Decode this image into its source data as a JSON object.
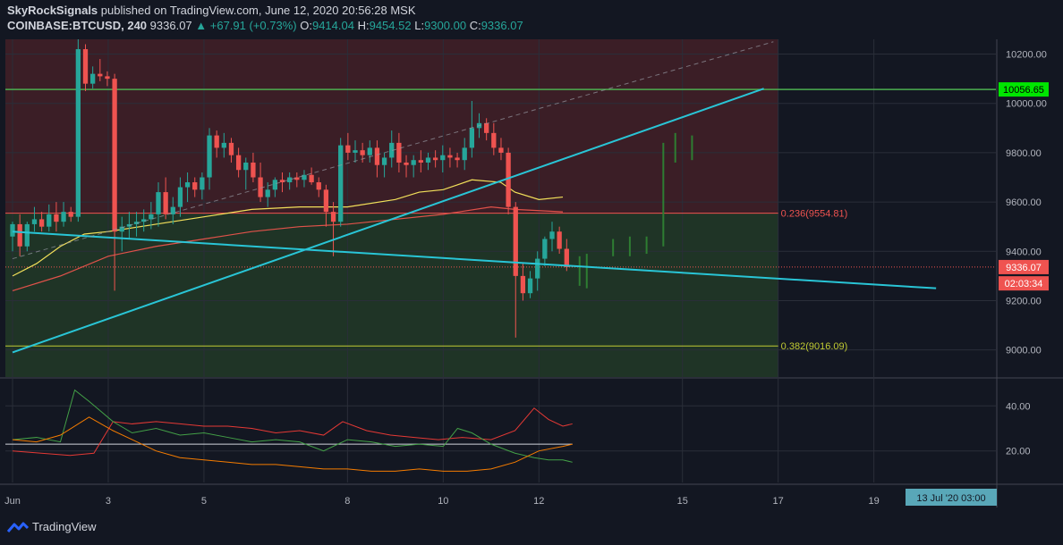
{
  "header": {
    "author": "SkyRockSignals",
    "published": "published on TradingView.com, June 12, 2020 20:56:28 MSK",
    "symbol": "COINBASE:BTCUSD, 240",
    "last": "9336.07",
    "change": "▲ +67.91 (+0.73%)",
    "o_label": "O:",
    "o_val": "9414.04",
    "h_label": "H:",
    "h_val": "9454.52",
    "l_label": "L:",
    "l_val": "9300.00",
    "c_label": "C:",
    "c_val": "9336.07"
  },
  "footer": {
    "brand": "TradingView"
  },
  "colors": {
    "up": "#26a69a",
    "down": "#ef5350",
    "ma_yellow": "#f2e05a",
    "ma_red": "#e0524a",
    "trend": "#29c5d6",
    "level_green": "#4caf50",
    "fib_red_zone": "#3b1e26",
    "fib_green_zone": "#1f3426"
  },
  "chart_data": {
    "type": "candlestick",
    "price_axis": {
      "ticks": [
        "10200.00",
        "10000.00",
        "9800.00",
        "9600.00",
        "9400.00",
        "9200.00",
        "9000.00"
      ],
      "tick_values": [
        10200,
        10000,
        9800,
        9600,
        9400,
        9200,
        9000
      ],
      "ylim": [
        8890,
        10260
      ]
    },
    "time_axis": {
      "ticks": [
        "Jun",
        "3",
        "5",
        "8",
        "10",
        "12",
        "15",
        "17",
        "19"
      ],
      "tick_days": [
        1,
        3,
        5,
        8,
        10,
        12,
        15,
        17,
        19
      ],
      "crosshair_label": "13 Jul '20   03:00"
    },
    "price_labels": [
      {
        "text": "10056.65",
        "value": 10056.65,
        "style": "green"
      },
      {
        "text": "9336.07",
        "value": 9336.07,
        "style": "red"
      },
      {
        "text": "02:03:34",
        "value": 9270,
        "style": "red"
      }
    ],
    "fib_levels": [
      {
        "label": "0.236(9554.81)",
        "value": 9554.81
      },
      {
        "label": "0.382(9016.09)",
        "value": 9016.09
      }
    ],
    "horizontal_level": 10056.65,
    "current_price": 9336.07,
    "candles": [
      [
        9460,
        9520,
        9400,
        9510
      ],
      [
        9510,
        9550,
        9380,
        9420
      ],
      [
        9420,
        9520,
        9400,
        9510
      ],
      [
        9510,
        9580,
        9480,
        9530
      ],
      [
        9530,
        9560,
        9480,
        9500
      ],
      [
        9500,
        9590,
        9480,
        9550
      ],
      [
        9550,
        9600,
        9480,
        9520
      ],
      [
        9520,
        9600,
        9500,
        9560
      ],
      [
        9560,
        9580,
        9520,
        9540
      ],
      [
        9540,
        10260,
        9520,
        10220
      ],
      [
        10220,
        10240,
        10050,
        10080
      ],
      [
        10080,
        10150,
        10060,
        10120
      ],
      [
        10120,
        10180,
        10090,
        10110
      ],
      [
        10110,
        10130,
        10070,
        10100
      ],
      [
        10100,
        10120,
        9240,
        9480
      ],
      [
        9480,
        9540,
        9400,
        9500
      ],
      [
        9500,
        9560,
        9450,
        9510
      ],
      [
        9510,
        9560,
        9460,
        9520
      ],
      [
        9520,
        9570,
        9480,
        9530
      ],
      [
        9530,
        9600,
        9490,
        9550
      ],
      [
        9550,
        9680,
        9500,
        9640
      ],
      [
        9640,
        9700,
        9530,
        9550
      ],
      [
        9550,
        9620,
        9510,
        9580
      ],
      [
        9580,
        9700,
        9540,
        9660
      ],
      [
        9660,
        9720,
        9600,
        9680
      ],
      [
        9680,
        9700,
        9620,
        9650
      ],
      [
        9650,
        9720,
        9610,
        9700
      ],
      [
        9700,
        9900,
        9650,
        9870
      ],
      [
        9870,
        9890,
        9780,
        9820
      ],
      [
        9820,
        9880,
        9780,
        9840
      ],
      [
        9840,
        9860,
        9760,
        9790
      ],
      [
        9790,
        9820,
        9700,
        9730
      ],
      [
        9730,
        9780,
        9650,
        9760
      ],
      [
        9760,
        9800,
        9680,
        9700
      ],
      [
        9700,
        9760,
        9600,
        9620
      ],
      [
        9620,
        9680,
        9580,
        9650
      ],
      [
        9650,
        9700,
        9620,
        9690
      ],
      [
        9690,
        9720,
        9640,
        9680
      ],
      [
        9680,
        9720,
        9650,
        9700
      ],
      [
        9700,
        9720,
        9660,
        9690
      ],
      [
        9690,
        9730,
        9660,
        9710
      ],
      [
        9710,
        9740,
        9670,
        9680
      ],
      [
        9680,
        9700,
        9620,
        9650
      ],
      [
        9650,
        9670,
        9500,
        9560
      ],
      [
        9560,
        9600,
        9380,
        9520
      ],
      [
        9520,
        9860,
        9500,
        9830
      ],
      [
        9830,
        9880,
        9770,
        9800
      ],
      [
        9800,
        9850,
        9760,
        9810
      ],
      [
        9810,
        9840,
        9760,
        9790
      ],
      [
        9790,
        9850,
        9760,
        9820
      ],
      [
        9820,
        9850,
        9700,
        9750
      ],
      [
        9750,
        9800,
        9700,
        9780
      ],
      [
        9780,
        9890,
        9740,
        9840
      ],
      [
        9840,
        9880,
        9720,
        9760
      ],
      [
        9760,
        9790,
        9700,
        9750
      ],
      [
        9750,
        9790,
        9700,
        9770
      ],
      [
        9770,
        9810,
        9720,
        9760
      ],
      [
        9760,
        9800,
        9730,
        9780
      ],
      [
        9780,
        9810,
        9740,
        9770
      ],
      [
        9770,
        9830,
        9720,
        9790
      ],
      [
        9790,
        9820,
        9740,
        9780
      ],
      [
        9780,
        9800,
        9740,
        9770
      ],
      [
        9770,
        9860,
        9730,
        9820
      ],
      [
        9820,
        10010,
        9780,
        9900
      ],
      [
        9900,
        9960,
        9860,
        9920
      ],
      [
        9920,
        9940,
        9850,
        9880
      ],
      [
        9880,
        9920,
        9790,
        9820
      ],
      [
        9820,
        9860,
        9770,
        9800
      ],
      [
        9800,
        9820,
        9550,
        9580
      ],
      [
        9580,
        9600,
        9050,
        9300
      ],
      [
        9300,
        9350,
        9200,
        9230
      ],
      [
        9230,
        9320,
        9210,
        9290
      ],
      [
        9290,
        9400,
        9240,
        9370
      ],
      [
        9370,
        9460,
        9340,
        9450
      ],
      [
        9450,
        9520,
        9400,
        9480
      ],
      [
        9480,
        9500,
        9390,
        9410
      ],
      [
        9410,
        9450,
        9320,
        9336
      ]
    ],
    "future_bars": [
      {
        "day": 12.85,
        "low": 9260,
        "high": 9380
      },
      {
        "day": 13.0,
        "low": 9250,
        "high": 9390
      },
      {
        "day": 13.55,
        "low": 9380,
        "high": 9450
      },
      {
        "day": 13.9,
        "low": 9380,
        "high": 9460
      },
      {
        "day": 14.25,
        "low": 9390,
        "high": 9460
      },
      {
        "day": 14.6,
        "low": 9420,
        "high": 9840
      },
      {
        "day": 14.85,
        "low": 9760,
        "high": 9880
      },
      {
        "day": 15.2,
        "low": 9770,
        "high": 9870
      }
    ],
    "ma_yellow": [
      [
        1.0,
        9300
      ],
      [
        1.5,
        9350
      ],
      [
        2.0,
        9420
      ],
      [
        2.5,
        9470
      ],
      [
        3.0,
        9480
      ],
      [
        4.0,
        9510
      ],
      [
        5.0,
        9540
      ],
      [
        6.0,
        9570
      ],
      [
        7.0,
        9580
      ],
      [
        8.0,
        9580
      ],
      [
        9.0,
        9610
      ],
      [
        9.5,
        9640
      ],
      [
        10.0,
        9650
      ],
      [
        10.6,
        9690
      ],
      [
        11.2,
        9680
      ],
      [
        11.5,
        9640
      ],
      [
        12.0,
        9610
      ],
      [
        12.5,
        9620
      ]
    ],
    "ma_red": [
      [
        1.0,
        9240
      ],
      [
        2.0,
        9300
      ],
      [
        3.0,
        9380
      ],
      [
        4.0,
        9420
      ],
      [
        5.0,
        9450
      ],
      [
        6.0,
        9480
      ],
      [
        7.0,
        9500
      ],
      [
        8.0,
        9510
      ],
      [
        9.0,
        9530
      ],
      [
        10.0,
        9550
      ],
      [
        11.0,
        9580
      ],
      [
        11.5,
        9570
      ],
      [
        12.0,
        9565
      ],
      [
        12.5,
        9560
      ]
    ],
    "trendlines": [
      {
        "from": [
          1.0,
          8990
        ],
        "to": [
          16.7,
          10060
        ],
        "style": "solid"
      },
      {
        "from": [
          1.0,
          9480
        ],
        "to": [
          20.3,
          9250
        ],
        "style": "solid"
      },
      {
        "from": [
          1.0,
          9370
        ],
        "to": [
          16.9,
          10250
        ],
        "style": "dashed"
      }
    ],
    "indicator": {
      "ticks": [
        "40.00",
        "20.00"
      ],
      "tick_values": [
        40,
        20
      ],
      "ylim": [
        6,
        52
      ],
      "threshold": 23,
      "series": [
        {
          "color": "#e53935",
          "values": [
            [
              1.0,
              20
            ],
            [
              1.6,
              19
            ],
            [
              2.2,
              18
            ],
            [
              2.7,
              19
            ],
            [
              3.1,
              33
            ],
            [
              3.5,
              32
            ],
            [
              4.0,
              33
            ],
            [
              4.5,
              32
            ],
            [
              5.0,
              31
            ],
            [
              5.5,
              31
            ],
            [
              6.0,
              30
            ],
            [
              6.5,
              28
            ],
            [
              7.0,
              29
            ],
            [
              7.5,
              27
            ],
            [
              7.9,
              33
            ],
            [
              8.4,
              29
            ],
            [
              8.9,
              27
            ],
            [
              9.4,
              26
            ],
            [
              9.9,
              25
            ],
            [
              10.4,
              26
            ],
            [
              11.0,
              25
            ],
            [
              11.5,
              29
            ],
            [
              11.9,
              39
            ],
            [
              12.2,
              34
            ],
            [
              12.5,
              31
            ],
            [
              12.7,
              32
            ]
          ]
        },
        {
          "color": "#43a047",
          "values": [
            [
              1.0,
              25
            ],
            [
              1.5,
              26
            ],
            [
              2.0,
              24
            ],
            [
              2.3,
              47
            ],
            [
              2.6,
              42
            ],
            [
              3.1,
              33
            ],
            [
              3.5,
              28
            ],
            [
              4.0,
              30
            ],
            [
              4.5,
              27
            ],
            [
              5.0,
              28
            ],
            [
              5.5,
              26
            ],
            [
              6.0,
              24
            ],
            [
              6.5,
              25
            ],
            [
              7.0,
              24
            ],
            [
              7.5,
              20
            ],
            [
              8.0,
              25
            ],
            [
              8.5,
              24
            ],
            [
              9.0,
              22
            ],
            [
              9.5,
              23
            ],
            [
              10.0,
              22
            ],
            [
              10.3,
              30
            ],
            [
              10.6,
              28
            ],
            [
              11.0,
              23
            ],
            [
              11.5,
              19
            ],
            [
              11.9,
              17
            ],
            [
              12.2,
              16
            ],
            [
              12.5,
              16
            ],
            [
              12.7,
              15
            ]
          ]
        },
        {
          "color": "#f57c00",
          "values": [
            [
              1.0,
              25
            ],
            [
              1.5,
              24
            ],
            [
              2.0,
              27
            ],
            [
              2.6,
              35
            ],
            [
              3.1,
              29
            ],
            [
              3.5,
              25
            ],
            [
              4.0,
              20
            ],
            [
              4.5,
              17
            ],
            [
              5.0,
              16
            ],
            [
              5.5,
              15
            ],
            [
              6.0,
              14
            ],
            [
              6.5,
              14
            ],
            [
              7.0,
              13
            ],
            [
              7.5,
              12
            ],
            [
              8.0,
              12
            ],
            [
              8.5,
              11
            ],
            [
              9.0,
              11
            ],
            [
              9.5,
              12
            ],
            [
              10.0,
              11
            ],
            [
              10.5,
              11
            ],
            [
              11.0,
              12
            ],
            [
              11.5,
              15
            ],
            [
              12.0,
              20
            ],
            [
              12.5,
              22
            ],
            [
              12.7,
              23
            ]
          ]
        }
      ]
    }
  }
}
